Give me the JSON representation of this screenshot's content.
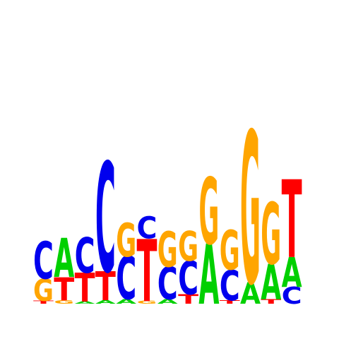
{
  "sequence_logo": {
    "colors": {
      "A": "#00d000",
      "C": "#0000ee",
      "G": "#ffa500",
      "T": "#ff0000"
    },
    "positions": [
      [
        {
          "base": "T",
          "height": 0.04
        },
        {
          "base": "G",
          "height": 0.3
        },
        {
          "base": "C",
          "height": 0.5
        }
      ],
      [
        {
          "base": "G",
          "height": 0.05
        },
        {
          "base": "T",
          "height": 0.31
        },
        {
          "base": "A",
          "height": 0.53
        }
      ],
      [
        {
          "base": "A",
          "height": 0.03
        },
        {
          "base": "T",
          "height": 0.39
        },
        {
          "base": "C",
          "height": 0.48
        }
      ],
      [
        {
          "base": "A",
          "height": 0.05
        },
        {
          "base": "T",
          "height": 0.39
        },
        {
          "base": "C",
          "height": 1.48
        }
      ],
      [
        {
          "base": "A",
          "height": 0.06
        },
        {
          "base": "C",
          "height": 0.58
        },
        {
          "base": "G",
          "height": 0.45
        }
      ],
      [
        {
          "base": "G",
          "height": 0.04
        },
        {
          "base": "T",
          "height": 0.84
        },
        {
          "base": "C",
          "height": 0.3
        }
      ],
      [
        {
          "base": "A",
          "height": 0.06
        },
        {
          "base": "C",
          "height": 0.44
        },
        {
          "base": "G",
          "height": 0.48
        }
      ],
      [
        {
          "base": "T",
          "height": 0.13
        },
        {
          "base": "C",
          "height": 0.45
        },
        {
          "base": "G",
          "height": 0.4
        }
      ],
      [
        {
          "base": "A",
          "height": 0.81
        },
        {
          "base": "G",
          "height": 0.9
        }
      ],
      [
        {
          "base": "T",
          "height": 0.05
        },
        {
          "base": "C",
          "height": 0.41
        },
        {
          "base": "G",
          "height": 0.53
        }
      ],
      [
        {
          "base": "A",
          "height": 0.29
        },
        {
          "base": "G",
          "height": 2.05
        }
      ],
      [
        {
          "base": "T",
          "height": 0.06
        },
        {
          "base": "A",
          "height": 0.48
        },
        {
          "base": "G",
          "height": 0.83
        }
      ],
      [
        {
          "base": "C",
          "height": 0.23
        },
        {
          "base": "A",
          "height": 0.4
        },
        {
          "base": "T",
          "height": 1.05
        }
      ]
    ]
  }
}
